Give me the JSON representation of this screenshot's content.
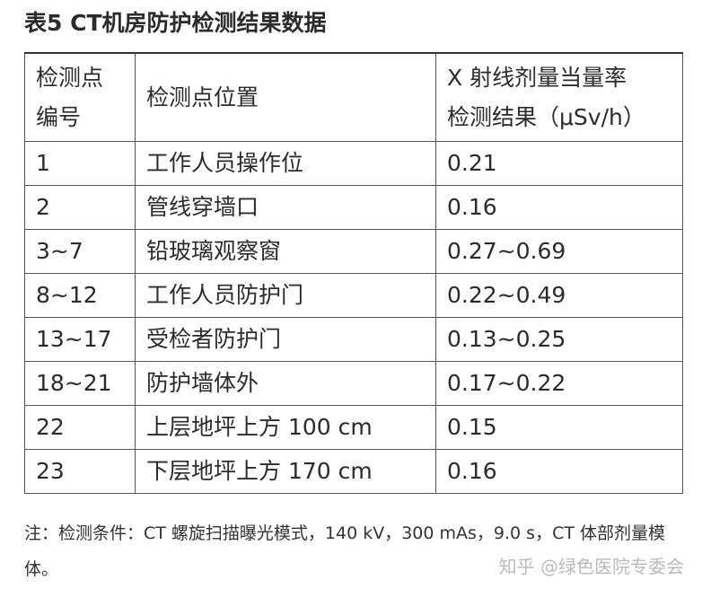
{
  "title": "表5 CT机房防护检测结果数据",
  "table": {
    "header": [
      [
        "检测点",
        "编号"
      ],
      [
        "检测点位置"
      ],
      [
        "X 射线剂量当量率",
        "检测结果（μSv/h）"
      ]
    ],
    "rows": [
      [
        "1",
        "工作人员操作位",
        "0.21"
      ],
      [
        "2",
        "管线穿墙口",
        "0.16"
      ],
      [
        "3~7",
        "铅玻璃观察窗",
        "0.27~0.69"
      ],
      [
        "8~12",
        "工作人员防护门",
        "0.22~0.49"
      ],
      [
        "13~17",
        "受检者防护门",
        "0.13~0.25"
      ],
      [
        "18~21",
        "防护墙体外",
        "0.17~0.22"
      ],
      [
        "22",
        "上层地坪上方 100 cm",
        "0.15"
      ],
      [
        "23",
        "下层地坪上方 170 cm",
        "0.16"
      ]
    ]
  },
  "note": "注：检测条件：CT 螺旋扫描曝光模式，140 kV，300 mAs，9.0 s，CT 体部剂量模体。",
  "watermark": "知乎 @绿色医院专委会"
}
